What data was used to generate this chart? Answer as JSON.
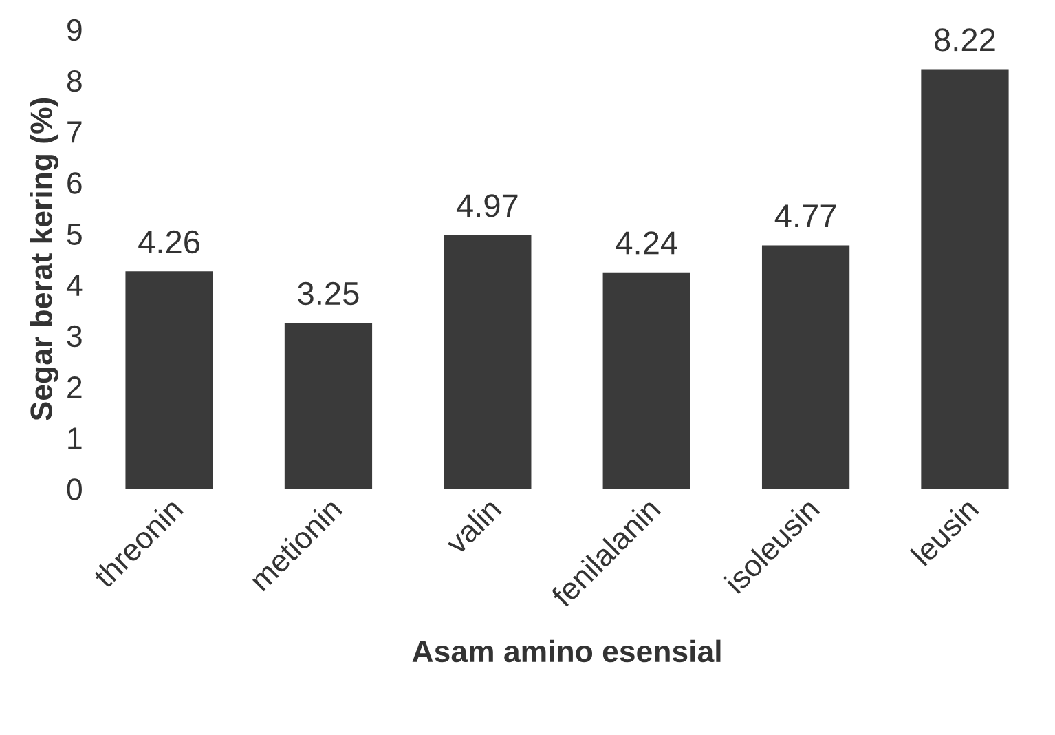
{
  "chart_data": {
    "type": "bar",
    "xlabel": "Asam amino esensial",
    "ylabel": "Segar berat kering (%)",
    "categories": [
      "threonin",
      "metionin",
      "valin",
      "fenilalanin",
      "isoleusin",
      "leusin"
    ],
    "values": [
      4.26,
      3.25,
      4.97,
      4.24,
      4.77,
      8.22
    ],
    "color": "#3a3a3a",
    "ylim": [
      0,
      9
    ],
    "yticks": [
      0,
      1,
      2,
      3,
      4,
      5,
      6,
      7,
      8,
      9
    ],
    "grid": false,
    "data_labels": true,
    "legend": false
  }
}
